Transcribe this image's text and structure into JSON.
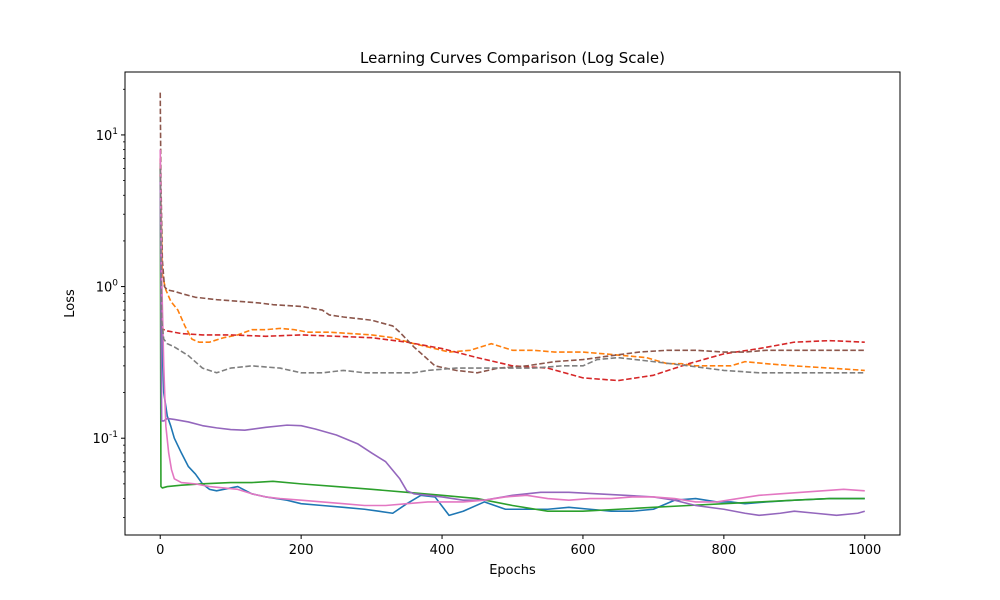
{
  "chart_data": {
    "type": "line",
    "title": "Learning Curves Comparison (Log Scale)",
    "xlabel": "Epochs",
    "ylabel": "Loss",
    "yscale": "log",
    "xlim": [
      -50,
      1050
    ],
    "ylim": [
      0.023,
      26
    ],
    "xticks": [
      0,
      200,
      400,
      600,
      800,
      1000
    ],
    "xtick_labels": [
      "0",
      "200",
      "400",
      "600",
      "800",
      "1000"
    ],
    "yticks": [
      0.1,
      1,
      10
    ],
    "ytick_labels": [
      "10^{-1}",
      "10^{0}",
      "10^{1}"
    ],
    "grid": false,
    "legend": "none",
    "series": [
      {
        "color": "#1f77b4",
        "style": "solid",
        "x": [
          0,
          2,
          5,
          10,
          15,
          20,
          30,
          40,
          50,
          60,
          70,
          80,
          100,
          110,
          130,
          150,
          180,
          200,
          230,
          260,
          290,
          310,
          330,
          350,
          370,
          390,
          410,
          430,
          460,
          490,
          520,
          550,
          580,
          610,
          640,
          670,
          700,
          730,
          760,
          790,
          810,
          830,
          860,
          900,
          950,
          1000
        ],
        "y": [
          5.5,
          0.5,
          0.2,
          0.14,
          0.12,
          0.1,
          0.08,
          0.065,
          0.058,
          0.05,
          0.046,
          0.045,
          0.047,
          0.048,
          0.043,
          0.041,
          0.039,
          0.037,
          0.036,
          0.035,
          0.034,
          0.033,
          0.032,
          0.037,
          0.042,
          0.041,
          0.031,
          0.033,
          0.038,
          0.034,
          0.034,
          0.034,
          0.035,
          0.034,
          0.033,
          0.033,
          0.034,
          0.039,
          0.04,
          0.038,
          0.038,
          0.037,
          0.038,
          0.039,
          0.04,
          0.04
        ]
      },
      {
        "color": "#ff7f0e",
        "style": "dashed",
        "x": [
          0,
          3,
          8,
          15,
          25,
          35,
          45,
          55,
          70,
          90,
          110,
          130,
          150,
          170,
          190,
          210,
          240,
          270,
          300,
          330,
          360,
          380,
          410,
          440,
          470,
          500,
          530,
          560,
          600,
          630,
          660,
          690,
          720,
          740,
          760,
          790,
          810,
          830,
          860,
          900,
          950,
          1000
        ],
        "y": [
          6.0,
          1.2,
          0.95,
          0.8,
          0.7,
          0.55,
          0.45,
          0.43,
          0.43,
          0.46,
          0.48,
          0.52,
          0.52,
          0.53,
          0.52,
          0.5,
          0.5,
          0.49,
          0.48,
          0.46,
          0.42,
          0.4,
          0.37,
          0.38,
          0.42,
          0.38,
          0.38,
          0.37,
          0.37,
          0.36,
          0.35,
          0.34,
          0.31,
          0.31,
          0.3,
          0.3,
          0.3,
          0.32,
          0.31,
          0.3,
          0.29,
          0.28
        ]
      },
      {
        "color": "#2ca02c",
        "style": "solid",
        "x": [
          0,
          1,
          3,
          10,
          30,
          60,
          100,
          130,
          160,
          200,
          250,
          300,
          350,
          400,
          450,
          500,
          550,
          600,
          650,
          700,
          750,
          800,
          850,
          900,
          950,
          1000
        ],
        "y": [
          6.5,
          0.048,
          0.047,
          0.048,
          0.049,
          0.05,
          0.051,
          0.051,
          0.052,
          0.05,
          0.048,
          0.046,
          0.044,
          0.042,
          0.04,
          0.036,
          0.033,
          0.033,
          0.034,
          0.035,
          0.036,
          0.037,
          0.038,
          0.039,
          0.04,
          0.04
        ]
      },
      {
        "color": "#d62728",
        "style": "dashed",
        "x": [
          0,
          2,
          5,
          10,
          30,
          60,
          100,
          150,
          200,
          250,
          300,
          350,
          400,
          450,
          500,
          550,
          600,
          650,
          700,
          750,
          800,
          850,
          900,
          950,
          1000
        ],
        "y": [
          7.0,
          0.53,
          0.52,
          0.51,
          0.49,
          0.48,
          0.48,
          0.47,
          0.48,
          0.47,
          0.46,
          0.43,
          0.39,
          0.34,
          0.3,
          0.29,
          0.25,
          0.24,
          0.26,
          0.31,
          0.36,
          0.39,
          0.43,
          0.44,
          0.43
        ]
      },
      {
        "color": "#9467bd",
        "style": "solid",
        "x": [
          0,
          2,
          5,
          10,
          20,
          40,
          60,
          80,
          100,
          120,
          150,
          180,
          200,
          220,
          250,
          280,
          300,
          320,
          340,
          350,
          360,
          380,
          400,
          430,
          460,
          500,
          540,
          580,
          620,
          660,
          700,
          730,
          760,
          800,
          830,
          850,
          880,
          900,
          930,
          960,
          990,
          1000
        ],
        "y": [
          5.0,
          0.13,
          0.13,
          0.135,
          0.133,
          0.128,
          0.121,
          0.117,
          0.114,
          0.113,
          0.118,
          0.122,
          0.121,
          0.115,
          0.105,
          0.092,
          0.08,
          0.07,
          0.054,
          0.045,
          0.043,
          0.042,
          0.041,
          0.039,
          0.039,
          0.042,
          0.044,
          0.044,
          0.043,
          0.042,
          0.041,
          0.039,
          0.036,
          0.034,
          0.032,
          0.031,
          0.032,
          0.033,
          0.032,
          0.031,
          0.032,
          0.033
        ]
      },
      {
        "color": "#8c564b",
        "style": "dashed",
        "x": [
          0,
          1,
          3,
          6,
          10,
          20,
          30,
          50,
          80,
          110,
          140,
          160,
          200,
          230,
          240,
          260,
          300,
          330,
          340,
          360,
          390,
          420,
          450,
          480,
          520,
          560,
          600,
          640,
          680,
          720,
          760,
          800,
          830,
          860,
          900,
          950,
          1000
        ],
        "y": [
          19.0,
          5.0,
          1.5,
          1.0,
          0.95,
          0.93,
          0.9,
          0.85,
          0.82,
          0.8,
          0.78,
          0.76,
          0.74,
          0.7,
          0.65,
          0.63,
          0.6,
          0.55,
          0.5,
          0.4,
          0.3,
          0.28,
          0.27,
          0.29,
          0.3,
          0.32,
          0.33,
          0.35,
          0.37,
          0.38,
          0.38,
          0.37,
          0.37,
          0.38,
          0.38,
          0.38,
          0.38
        ]
      },
      {
        "color": "#e377c2",
        "style": "solid",
        "x": [
          0,
          2,
          5,
          8,
          12,
          16,
          20,
          30,
          50,
          70,
          90,
          110,
          130,
          150,
          170,
          200,
          230,
          260,
          290,
          320,
          350,
          380,
          400,
          430,
          460,
          490,
          520,
          550,
          580,
          610,
          640,
          670,
          700,
          730,
          760,
          790,
          820,
          850,
          880,
          910,
          940,
          970,
          1000
        ],
        "y": [
          8.0,
          1.2,
          0.3,
          0.12,
          0.08,
          0.062,
          0.054,
          0.051,
          0.05,
          0.048,
          0.047,
          0.046,
          0.043,
          0.041,
          0.04,
          0.039,
          0.038,
          0.037,
          0.036,
          0.036,
          0.037,
          0.038,
          0.038,
          0.038,
          0.039,
          0.041,
          0.042,
          0.04,
          0.039,
          0.04,
          0.04,
          0.041,
          0.041,
          0.04,
          0.038,
          0.038,
          0.04,
          0.042,
          0.043,
          0.044,
          0.045,
          0.046,
          0.045
        ]
      },
      {
        "color": "#7f7f7f",
        "style": "dashed",
        "x": [
          0,
          2,
          5,
          10,
          20,
          40,
          60,
          80,
          100,
          130,
          170,
          200,
          230,
          260,
          290,
          330,
          360,
          380,
          420,
          460,
          500,
          530,
          570,
          600,
          620,
          650,
          700,
          750,
          800,
          850,
          900,
          950,
          1000
        ],
        "y": [
          6.0,
          0.6,
          0.45,
          0.42,
          0.4,
          0.35,
          0.29,
          0.27,
          0.29,
          0.3,
          0.29,
          0.27,
          0.27,
          0.28,
          0.27,
          0.27,
          0.27,
          0.28,
          0.29,
          0.29,
          0.29,
          0.29,
          0.3,
          0.3,
          0.33,
          0.34,
          0.32,
          0.3,
          0.28,
          0.27,
          0.27,
          0.27,
          0.27
        ]
      }
    ]
  }
}
